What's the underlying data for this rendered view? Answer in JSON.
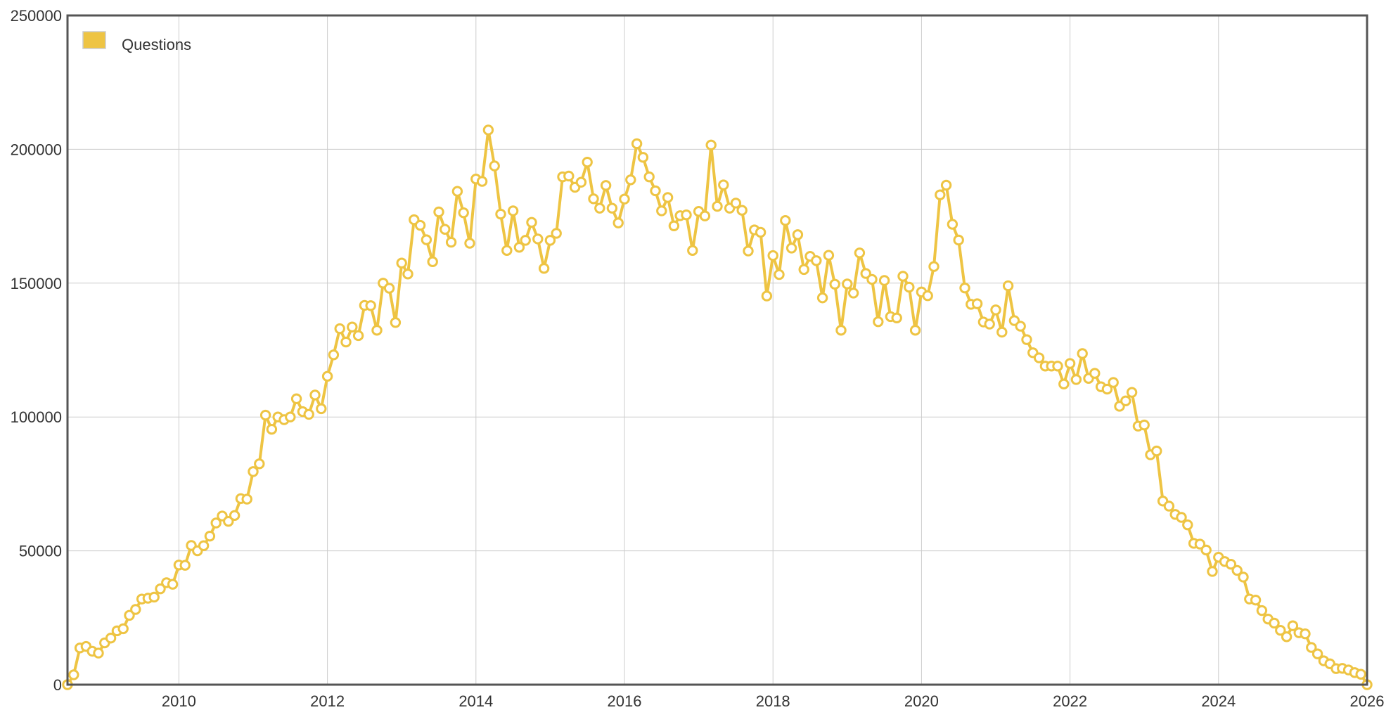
{
  "chart_data": {
    "type": "line",
    "title": "",
    "xlabel": "",
    "ylabel": "",
    "xlim": [
      "2008-07",
      "2026-01"
    ],
    "ylim": [
      0,
      250000
    ],
    "x_ticks": [
      "2010",
      "2012",
      "2014",
      "2016",
      "2018",
      "2020",
      "2022",
      "2024",
      "2026"
    ],
    "y_ticks": [
      "0",
      "50000",
      "100000",
      "150000",
      "200000",
      "250000"
    ],
    "grid": true,
    "legend_position": "top-left",
    "colors": {
      "series": "#eec443",
      "marker_fill": "#ffffff",
      "frame": "#555555",
      "grid": "#cccccc"
    },
    "series": [
      {
        "name": "Questions",
        "x": [
          "2008-07",
          "2008-08",
          "2008-09",
          "2008-10",
          "2008-11",
          "2008-12",
          "2009-01",
          "2009-02",
          "2009-03",
          "2009-04",
          "2009-05",
          "2009-06",
          "2009-07",
          "2009-08",
          "2009-09",
          "2009-10",
          "2009-11",
          "2009-12",
          "2010-01",
          "2010-02",
          "2010-03",
          "2010-04",
          "2010-05",
          "2010-06",
          "2010-07",
          "2010-08",
          "2010-09",
          "2010-10",
          "2010-11",
          "2010-12",
          "2011-01",
          "2011-02",
          "2011-03",
          "2011-04",
          "2011-05",
          "2011-06",
          "2011-07",
          "2011-08",
          "2011-09",
          "2011-10",
          "2011-11",
          "2011-12",
          "2012-01",
          "2012-02",
          "2012-03",
          "2012-04",
          "2012-05",
          "2012-06",
          "2012-07",
          "2012-08",
          "2012-09",
          "2012-10",
          "2012-11",
          "2012-12",
          "2013-01",
          "2013-02",
          "2013-03",
          "2013-04",
          "2013-05",
          "2013-06",
          "2013-07",
          "2013-08",
          "2013-09",
          "2013-10",
          "2013-11",
          "2013-12",
          "2014-01",
          "2014-02",
          "2014-03",
          "2014-04",
          "2014-05",
          "2014-06",
          "2014-07",
          "2014-08",
          "2014-09",
          "2014-10",
          "2014-11",
          "2014-12",
          "2015-01",
          "2015-02",
          "2015-03",
          "2015-04",
          "2015-05",
          "2015-06",
          "2015-07",
          "2015-08",
          "2015-09",
          "2015-10",
          "2015-11",
          "2015-12",
          "2016-01",
          "2016-02",
          "2016-03",
          "2016-04",
          "2016-05",
          "2016-06",
          "2016-07",
          "2016-08",
          "2016-09",
          "2016-10",
          "2016-11",
          "2016-12",
          "2017-01",
          "2017-02",
          "2017-03",
          "2017-04",
          "2017-05",
          "2017-06",
          "2017-07",
          "2017-08",
          "2017-09",
          "2017-10",
          "2017-11",
          "2017-12",
          "2018-01",
          "2018-02",
          "2018-03",
          "2018-04",
          "2018-05",
          "2018-06",
          "2018-07",
          "2018-08",
          "2018-09",
          "2018-10",
          "2018-11",
          "2018-12",
          "2019-01",
          "2019-02",
          "2019-03",
          "2019-04",
          "2019-05",
          "2019-06",
          "2019-07",
          "2019-08",
          "2019-09",
          "2019-10",
          "2019-11",
          "2019-12",
          "2020-01",
          "2020-02",
          "2020-03",
          "2020-04",
          "2020-05",
          "2020-06",
          "2020-07",
          "2020-08",
          "2020-09",
          "2020-10",
          "2020-11",
          "2020-12",
          "2021-01",
          "2021-02",
          "2021-03",
          "2021-04",
          "2021-05",
          "2021-06",
          "2021-07",
          "2021-08",
          "2021-09",
          "2021-10",
          "2021-11",
          "2021-12",
          "2022-01",
          "2022-02",
          "2022-03",
          "2022-04",
          "2022-05",
          "2022-06",
          "2022-07",
          "2022-08",
          "2022-09",
          "2022-10",
          "2022-11",
          "2022-12",
          "2023-01",
          "2023-02",
          "2023-03",
          "2023-04",
          "2023-05",
          "2023-06",
          "2023-07",
          "2023-08",
          "2023-09",
          "2023-10",
          "2023-11",
          "2023-12",
          "2024-01",
          "2024-02",
          "2024-03",
          "2024-04",
          "2024-05",
          "2024-06",
          "2024-07",
          "2024-08",
          "2024-09",
          "2024-10",
          "2024-11",
          "2024-12",
          "2025-01",
          "2025-02",
          "2025-03",
          "2025-04",
          "2025-05",
          "2025-06",
          "2025-07",
          "2025-08",
          "2025-09",
          "2025-10",
          "2025-11",
          "2025-12",
          "2026-01"
        ],
        "values": [
          0,
          3700,
          13700,
          14300,
          12500,
          11800,
          15600,
          17400,
          20100,
          20900,
          25900,
          28100,
          32000,
          32300,
          32700,
          35800,
          38100,
          37500,
          44700,
          44600,
          52000,
          50000,
          51900,
          55500,
          60400,
          63000,
          61000,
          63200,
          69500,
          69300,
          79600,
          82500,
          100700,
          95400,
          100000,
          99000,
          100000,
          106800,
          102000,
          101000,
          108200,
          103100,
          115200,
          123200,
          133000,
          128000,
          133600,
          130400,
          141700,
          141600,
          132400,
          150000,
          148100,
          135300,
          157500,
          153400,
          173700,
          171600,
          166200,
          158000,
          176600,
          170100,
          165300,
          184300,
          176300,
          164900,
          188900,
          188000,
          207200,
          193800,
          175800,
          162200,
          177000,
          163400,
          166000,
          172700,
          166500,
          155500,
          166000,
          168600,
          189700,
          190000,
          185800,
          187700,
          195200,
          181500,
          178000,
          186500,
          178000,
          172500,
          181400,
          188600,
          202100,
          197000,
          189700,
          184500,
          177000,
          182000,
          171400,
          175200,
          175500,
          162200,
          176800,
          175100,
          201600,
          178700,
          186700,
          178000,
          179900,
          177200,
          162000,
          169900,
          169000,
          145200,
          160300,
          153200,
          173400,
          163100,
          168100,
          155100,
          160000,
          158400,
          144500,
          160400,
          149600,
          132400,
          149700,
          146300,
          161300,
          153600,
          151400,
          135600,
          151000,
          137500,
          137000,
          152600,
          148500,
          132400,
          146700,
          145300,
          156200,
          183000,
          186600,
          172000,
          166100,
          148200,
          142100,
          142300,
          135500,
          134700,
          140000,
          131700,
          149000,
          136000,
          133900,
          128900,
          124000,
          122100,
          119000,
          119000,
          119000,
          112300,
          120000,
          114000,
          123700,
          114400,
          116300,
          111300,
          110400,
          112900,
          104000,
          106000,
          109200,
          96600,
          97000,
          85900,
          87300,
          68600,
          66700,
          63600,
          62500,
          59700,
          52800,
          52500,
          50300,
          42300,
          47600,
          46000,
          45000,
          42700,
          40200,
          32000,
          31600,
          27700,
          24500,
          23000,
          20300,
          17900,
          22000,
          19400,
          19000,
          13900,
          11500,
          8900,
          7800,
          6000,
          6100,
          5500,
          4500,
          3900,
          0
        ]
      }
    ]
  }
}
